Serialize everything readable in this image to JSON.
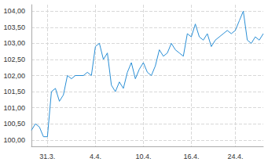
{
  "chart_data": {
    "type": "line",
    "color": "#2a8fd6",
    "grid": true,
    "categories": [
      null,
      null,
      null,
      null,
      "31.3.",
      null,
      null,
      null,
      null,
      null,
      null,
      null,
      null,
      null,
      null,
      null,
      "4.4.",
      null,
      null,
      null,
      null,
      null,
      null,
      null,
      null,
      null,
      null,
      null,
      "10.4.",
      null,
      null,
      null,
      null,
      null,
      null,
      null,
      null,
      null,
      null,
      null,
      "16.4.",
      null,
      null,
      null,
      null,
      null,
      null,
      null,
      null,
      null,
      null,
      "24.4.",
      null,
      null,
      null,
      null,
      null,
      null,
      null
    ],
    "values": [
      100.3,
      100.5,
      100.4,
      100.1,
      100.1,
      101.5,
      101.6,
      101.2,
      101.4,
      102.0,
      101.9,
      102.0,
      102.0,
      102.0,
      102.1,
      102.0,
      102.9,
      103.0,
      102.5,
      102.7,
      101.7,
      101.5,
      101.8,
      101.6,
      102.1,
      102.4,
      101.9,
      102.2,
      102.4,
      102.1,
      102.0,
      102.3,
      102.8,
      102.6,
      102.7,
      103.0,
      102.8,
      102.7,
      102.6,
      103.3,
      103.2,
      103.6,
      103.2,
      103.1,
      103.3,
      102.9,
      103.1,
      103.2,
      103.3,
      103.4,
      103.3,
      103.4,
      103.7,
      104.0,
      103.1,
      103.0,
      103.2,
      103.1,
      103.3
    ],
    "ylim": [
      99.8,
      104.2
    ],
    "yticks": [
      {
        "value": 100,
        "label": "100,00"
      },
      {
        "value": 100.5,
        "label": "100,50"
      },
      {
        "value": 101,
        "label": "101,00"
      },
      {
        "value": 101.5,
        "label": "101,50"
      },
      {
        "value": 102,
        "label": "102,00"
      },
      {
        "value": 102.5,
        "label": "102,50"
      },
      {
        "value": 103,
        "label": "103,00"
      },
      {
        "value": 103.5,
        "label": "103,50"
      },
      {
        "value": 104,
        "label": "104,00"
      }
    ]
  }
}
